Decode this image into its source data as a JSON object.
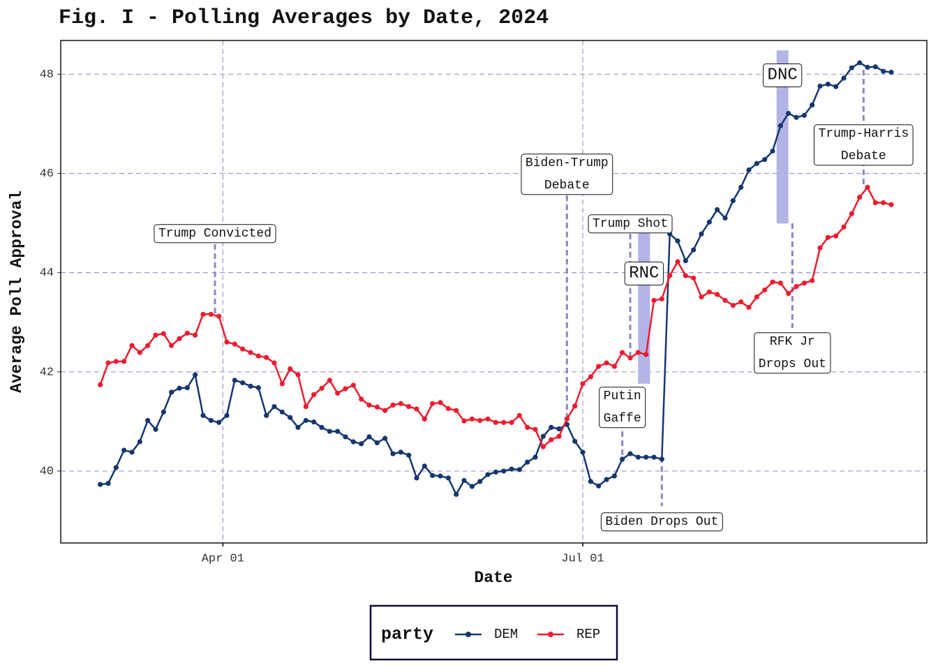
{
  "chart_data": {
    "type": "line",
    "title": "Fig. I - Polling Averages by Date, 2024",
    "x_label": "Date",
    "y_label": "Average Poll Approval",
    "x": [
      "2024-03-01",
      "2024-03-03",
      "2024-03-05",
      "2024-03-07",
      "2024-03-09",
      "2024-03-11",
      "2024-03-13",
      "2024-03-15",
      "2024-03-17",
      "2024-03-19",
      "2024-03-21",
      "2024-03-23",
      "2024-03-25",
      "2024-03-27",
      "2024-03-29",
      "2024-03-31",
      "2024-04-02",
      "2024-04-04",
      "2024-04-06",
      "2024-04-08",
      "2024-04-10",
      "2024-04-12",
      "2024-04-14",
      "2024-04-16",
      "2024-04-18",
      "2024-04-20",
      "2024-04-22",
      "2024-04-24",
      "2024-04-26",
      "2024-04-28",
      "2024-04-30",
      "2024-05-02",
      "2024-05-04",
      "2024-05-06",
      "2024-05-08",
      "2024-05-10",
      "2024-05-12",
      "2024-05-14",
      "2024-05-16",
      "2024-05-18",
      "2024-05-20",
      "2024-05-22",
      "2024-05-24",
      "2024-05-26",
      "2024-05-28",
      "2024-05-30",
      "2024-06-01",
      "2024-06-03",
      "2024-06-05",
      "2024-06-07",
      "2024-06-09",
      "2024-06-11",
      "2024-06-13",
      "2024-06-15",
      "2024-06-17",
      "2024-06-19",
      "2024-06-21",
      "2024-06-23",
      "2024-06-25",
      "2024-06-27",
      "2024-06-29",
      "2024-07-01",
      "2024-07-03",
      "2024-07-05",
      "2024-07-07",
      "2024-07-09",
      "2024-07-11",
      "2024-07-13",
      "2024-07-15",
      "2024-07-17",
      "2024-07-19",
      "2024-07-21",
      "2024-07-23",
      "2024-07-25",
      "2024-07-27",
      "2024-07-29",
      "2024-07-31",
      "2024-08-02",
      "2024-08-04",
      "2024-08-06",
      "2024-08-08",
      "2024-08-10",
      "2024-08-12",
      "2024-08-14",
      "2024-08-16",
      "2024-08-18",
      "2024-08-20",
      "2024-08-22",
      "2024-08-24",
      "2024-08-26",
      "2024-08-28",
      "2024-08-30",
      "2024-09-01",
      "2024-09-03",
      "2024-09-05",
      "2024-09-07",
      "2024-09-09",
      "2024-09-11",
      "2024-09-13",
      "2024-09-15",
      "2024-09-17"
    ],
    "series": [
      {
        "name": "DEM",
        "color": "#15376f",
        "values": [
          39.73,
          39.75,
          40.07,
          40.42,
          40.38,
          40.59,
          41.02,
          40.84,
          41.19,
          41.59,
          41.67,
          41.68,
          41.94,
          41.12,
          41.02,
          40.98,
          41.12,
          41.83,
          41.78,
          41.71,
          41.68,
          41.12,
          41.3,
          41.19,
          41.08,
          40.88,
          41.02,
          40.99,
          40.88,
          40.8,
          40.8,
          40.69,
          40.59,
          40.55,
          40.69,
          40.57,
          40.66,
          40.35,
          40.38,
          40.32,
          39.86,
          40.1,
          39.91,
          39.9,
          39.86,
          39.53,
          39.81,
          39.69,
          39.79,
          39.93,
          39.98,
          40.0,
          40.04,
          40.03,
          40.18,
          40.28,
          40.7,
          40.88,
          40.85,
          40.94,
          40.6,
          40.38,
          39.79,
          39.7,
          39.83,
          39.9,
          40.24,
          40.35,
          40.28,
          40.28,
          40.28,
          40.24,
          44.78,
          44.64,
          44.24,
          44.46,
          44.78,
          45.02,
          45.27,
          45.1,
          45.45,
          45.72,
          46.07,
          46.2,
          46.28,
          46.45,
          46.96,
          47.21,
          47.13,
          47.17,
          47.38,
          47.76,
          47.8,
          47.75,
          47.92,
          48.13,
          48.23,
          48.14,
          48.15,
          48.06,
          48.04
        ]
      },
      {
        "name": "REP",
        "color": "#ee1b2e",
        "values": [
          41.74,
          42.18,
          42.21,
          42.21,
          42.53,
          42.39,
          42.53,
          42.74,
          42.77,
          42.53,
          42.67,
          42.78,
          42.74,
          43.16,
          43.16,
          43.12,
          42.6,
          42.56,
          42.46,
          42.39,
          42.32,
          42.29,
          42.18,
          41.76,
          42.06,
          41.94,
          41.3,
          41.54,
          41.67,
          41.83,
          41.57,
          41.66,
          41.73,
          41.45,
          41.33,
          41.29,
          41.22,
          41.33,
          41.36,
          41.3,
          41.25,
          41.05,
          41.36,
          41.38,
          41.26,
          41.22,
          41.01,
          41.05,
          41.02,
          41.05,
          40.98,
          40.98,
          40.98,
          41.12,
          40.88,
          40.84,
          40.49,
          40.63,
          40.7,
          41.05,
          41.31,
          41.76,
          41.9,
          42.11,
          42.18,
          42.11,
          42.39,
          42.28,
          42.39,
          42.35,
          43.44,
          43.47,
          43.94,
          44.22,
          43.94,
          43.89,
          43.51,
          43.61,
          43.56,
          43.44,
          43.34,
          43.41,
          43.3,
          43.51,
          43.65,
          43.81,
          43.79,
          43.58,
          43.72,
          43.79,
          43.84,
          44.5,
          44.71,
          44.74,
          44.92,
          45.19,
          45.52,
          45.72,
          45.41,
          45.41,
          45.37
        ]
      }
    ],
    "xlim": [
      "2024-02-20",
      "2024-09-26"
    ],
    "xticks": [
      {
        "value": "2024-04-01",
        "label": "Apr 01"
      },
      {
        "value": "2024-07-01",
        "label": "Jul 01"
      }
    ],
    "ylim": [
      38.55,
      48.68
    ],
    "yticks": [
      40,
      42,
      44,
      46,
      48
    ],
    "grid": true,
    "legend_title": "party",
    "legend_position": "bottom",
    "annotations": [
      {
        "date": "2024-03-30",
        "label": [
          "Trump Convicted"
        ]
      },
      {
        "date": "2024-06-27",
        "label": [
          "Biden-Trump",
          "Debate"
        ]
      },
      {
        "date": "2024-07-13",
        "label": [
          "Trump Shot"
        ]
      },
      {
        "date": "2024-07-11",
        "label": [
          "Putin",
          "Gaffe"
        ]
      },
      {
        "date": "2024-07-21",
        "label": [
          "Biden Drops Out"
        ]
      },
      {
        "date": "2024-08-23",
        "label": [
          "RFK Jr",
          "Drops Out"
        ]
      },
      {
        "date": "2024-09-10",
        "label": [
          "Trump-Harris",
          "Debate"
        ]
      }
    ],
    "bands": [
      {
        "label": "RNC",
        "start": "2024-07-15",
        "end": "2024-07-18",
        "ymin": 41.76,
        "ymax": 44.81
      },
      {
        "label": "DNC",
        "start": "2024-08-19",
        "end": "2024-08-22",
        "ymin": 44.99,
        "ymax": 48.48
      }
    ]
  }
}
